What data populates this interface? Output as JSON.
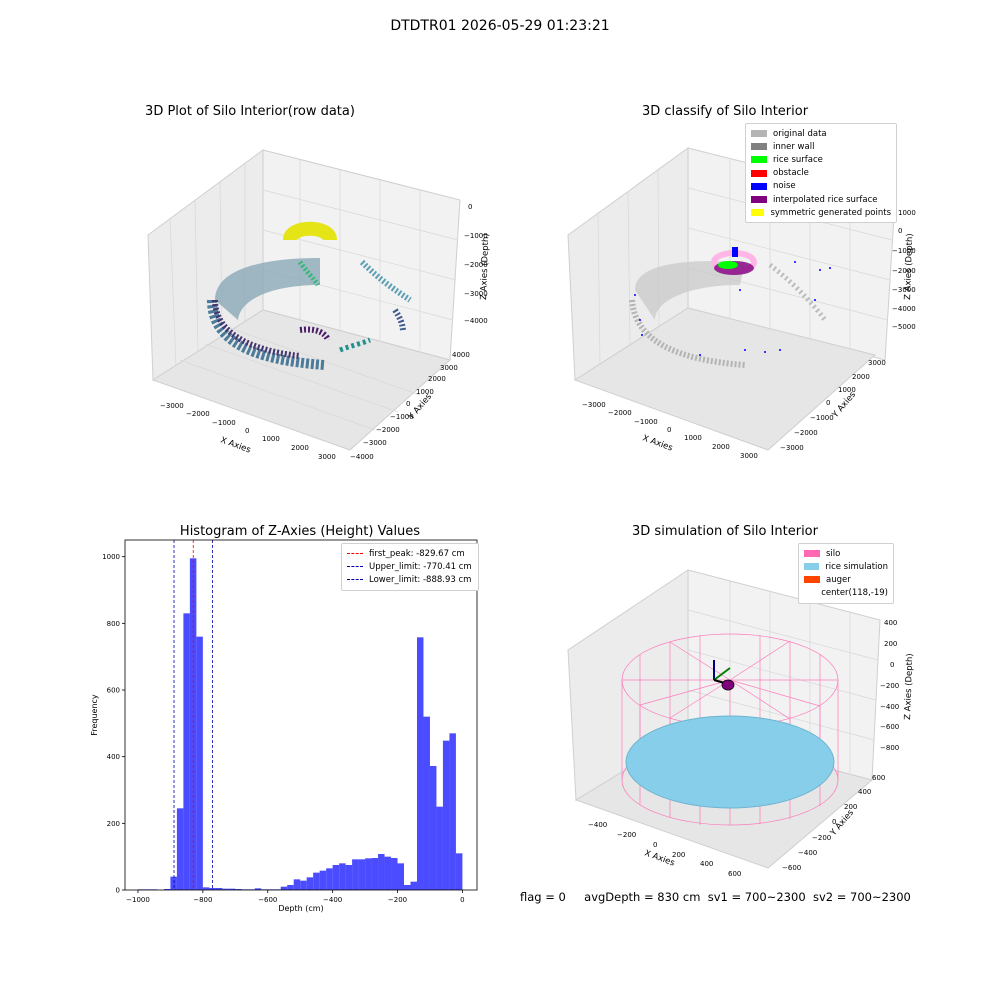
{
  "figure": {
    "suptitle": "DTDTR01 2026-05-29 01:23:21",
    "footer": {
      "flag": "flag = 0",
      "avg": "avgDepth = 830 cm",
      "sv1": "sv1 = 700~2300",
      "sv2": "sv2 = 700~2300"
    }
  },
  "chart_data": [
    {
      "type": "scatter",
      "title": "3D Plot of Silo Interior(row data)",
      "xlabel": "X Axies",
      "ylabel": "Y Axies",
      "zlabel": "Z Axies (Depth)",
      "x_ticks": [
        "−3000",
        "−2000",
        "−1000",
        "0",
        "1000",
        "2000",
        "3000"
      ],
      "y_ticks": [
        "4000",
        "3000",
        "2000",
        "1000",
        "0",
        "−1000",
        "−2000",
        "−3000",
        "−4000"
      ],
      "z_ticks": [
        "0",
        "−1000",
        "−2000",
        "−3000",
        "−4000"
      ],
      "colormap": "viridis"
    },
    {
      "type": "scatter",
      "title": "3D classify of Silo Interior",
      "xlabel": "X Axies",
      "ylabel": "Y Axies",
      "zlabel": "Z Axies (Depth)",
      "x_ticks": [
        "−3000",
        "−2000",
        "−1000",
        "0",
        "1000",
        "2000",
        "3000"
      ],
      "y_ticks": [
        "3000",
        "2000",
        "1000",
        "0",
        "−1000",
        "−2000",
        "−3000"
      ],
      "z_ticks": [
        "1000",
        "0",
        "−1000",
        "−2000",
        "−3000",
        "−4000",
        "−5000"
      ],
      "legend": [
        {
          "label": "original data",
          "color": "#b4b4b4"
        },
        {
          "label": "inner wall",
          "color": "#808080"
        },
        {
          "label": "rice surface",
          "color": "#00ff00"
        },
        {
          "label": "obstacle",
          "color": "#ff0000"
        },
        {
          "label": "noise",
          "color": "#0000ff"
        },
        {
          "label": "interpolated rice surface",
          "color": "#800080"
        },
        {
          "label": "symmetric generated points",
          "color": "#ffff00"
        }
      ]
    },
    {
      "type": "bar",
      "title": "Histogram of Z-Axies (Height) Values",
      "xlabel": "Depth (cm)",
      "ylabel": "Frequency",
      "xlim": [
        -1040,
        45
      ],
      "ylim": [
        0,
        1050
      ],
      "x_ticks": [
        -1000,
        -800,
        -600,
        -400,
        -200,
        0
      ],
      "y_ticks": [
        0,
        200,
        400,
        600,
        800,
        1000
      ],
      "bin_width": 20,
      "color": "#4b4bff",
      "bins": [
        [
          -1000,
          2
        ],
        [
          -980,
          2
        ],
        [
          -960,
          2
        ],
        [
          -940,
          0
        ],
        [
          -920,
          3
        ],
        [
          -900,
          40
        ],
        [
          -880,
          245
        ],
        [
          -860,
          830
        ],
        [
          -840,
          995
        ],
        [
          -820,
          760
        ],
        [
          -800,
          8
        ],
        [
          -780,
          6
        ],
        [
          -760,
          6
        ],
        [
          -740,
          4
        ],
        [
          -720,
          4
        ],
        [
          -700,
          3
        ],
        [
          -680,
          2
        ],
        [
          -660,
          2
        ],
        [
          -640,
          5
        ],
        [
          -620,
          2
        ],
        [
          -600,
          2
        ],
        [
          -580,
          2
        ],
        [
          -560,
          10
        ],
        [
          -540,
          15
        ],
        [
          -520,
          32
        ],
        [
          -500,
          28
        ],
        [
          -480,
          38
        ],
        [
          -460,
          52
        ],
        [
          -440,
          58
        ],
        [
          -420,
          65
        ],
        [
          -400,
          75
        ],
        [
          -380,
          80
        ],
        [
          -360,
          75
        ],
        [
          -340,
          92
        ],
        [
          -320,
          92
        ],
        [
          -300,
          95
        ],
        [
          -280,
          96
        ],
        [
          -260,
          108
        ],
        [
          -240,
          100
        ],
        [
          -220,
          96
        ],
        [
          -200,
          80
        ],
        [
          -180,
          15
        ],
        [
          -160,
          25
        ],
        [
          -140,
          758
        ],
        [
          -120,
          520
        ],
        [
          -100,
          372
        ],
        [
          -80,
          250
        ],
        [
          -60,
          448
        ],
        [
          -40,
          470
        ],
        [
          -20,
          110
        ]
      ],
      "vlines": [
        {
          "label": "first_peak: -829.67 cm",
          "x": -829.67,
          "color": "#ff0000"
        },
        {
          "label": "Upper_limit: -770.41 cm",
          "x": -770.41,
          "color": "#0000aa"
        },
        {
          "label": "Lower_limit: -888.93 cm",
          "x": -888.93,
          "color": "#0000aa"
        }
      ]
    },
    {
      "type": "scatter",
      "title": "3D simulation of Silo Interior",
      "xlabel": "X Axies",
      "ylabel": "Y Axies",
      "zlabel": "Z Axies (Depth)",
      "x_ticks": [
        "−400",
        "−200",
        "0",
        "200",
        "400",
        "600"
      ],
      "y_ticks": [
        "600",
        "400",
        "200",
        "0",
        "−200",
        "−400",
        "−600"
      ],
      "z_ticks": [
        "400",
        "200",
        "0",
        "−200",
        "−400",
        "−600",
        "−800"
      ],
      "legend": [
        {
          "label": "silo",
          "color": "#ff69b4"
        },
        {
          "label": "rice simulation",
          "color": "#87ceeb"
        },
        {
          "label": "auger",
          "color": "#ff4500"
        },
        {
          "label": "center(118,-19)",
          "color": ""
        }
      ]
    }
  ]
}
